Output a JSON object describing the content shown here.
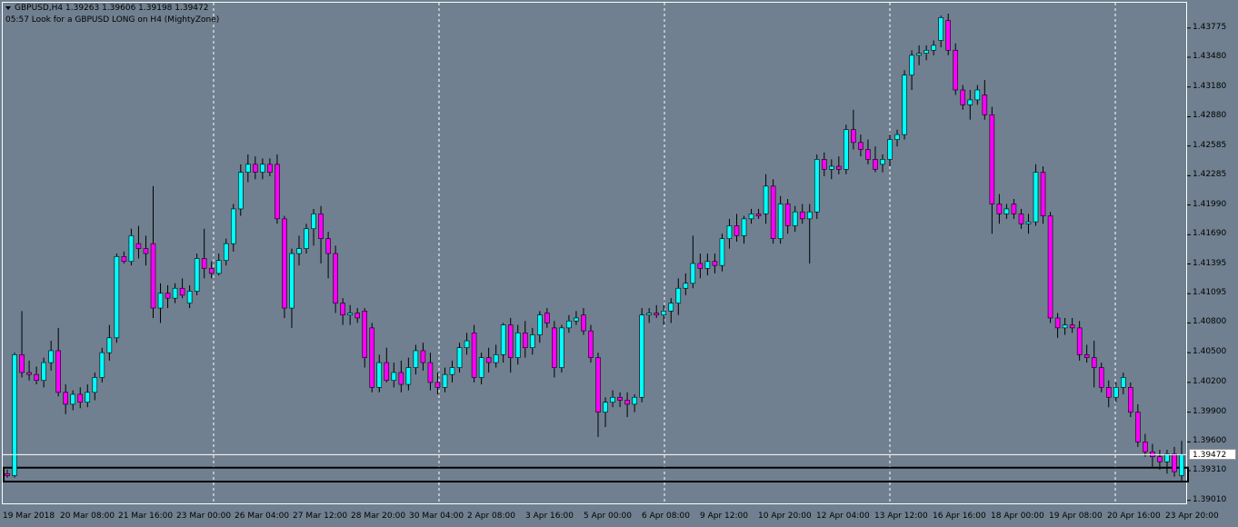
{
  "header": {
    "symbol_line": "GBPUSD,H4  1.39263 1.39606 1.39198 1.39472",
    "comment_line": "05:57 Look for a GBPUSD LONG on H4 (MightyZone)"
  },
  "colors": {
    "background": "#708090",
    "bull_candle": "#00ffff",
    "bear_candle": "#ff00ff",
    "wick": "#000000",
    "grid": "#ffffff",
    "zone_border": "#000000"
  },
  "current_price_label": "1.39472",
  "chart_data": {
    "type": "candlestick",
    "symbol": "GBPUSD",
    "timeframe": "H4",
    "grid": true,
    "ylim": [
      1.3898,
      1.4403
    ],
    "y_ticks": [
      "1.43775",
      "1.43480",
      "1.43180",
      "1.42880",
      "1.42585",
      "1.42285",
      "1.41990",
      "1.41690",
      "1.41395",
      "1.41095",
      "1.40800",
      "1.40500",
      "1.40200",
      "1.39900",
      "1.39600",
      "1.39310",
      "1.39010"
    ],
    "x_ticks": [
      "19 Mar 2018",
      "20 Mar 08:00",
      "21 Mar 16:00",
      "23 Mar 00:00",
      "26 Mar 04:00",
      "27 Mar 12:00",
      "28 Mar 20:00",
      "30 Mar 04:00",
      "2 Apr 08:00",
      "3 Apr 16:00",
      "5 Apr 00:00",
      "6 Apr 08:00",
      "9 Apr 12:00",
      "10 Apr 20:00",
      "12 Apr 04:00",
      "13 Apr 12:00",
      "16 Apr 16:00",
      "18 Apr 00:00",
      "19 Apr 08:00",
      "20 Apr 16:00",
      "23 Apr 20:00"
    ],
    "current_price": 1.39472,
    "zone": {
      "low": 1.392,
      "high": 1.3934,
      "label": "MightyZone"
    },
    "candles": [
      [
        1.3928,
        1.3932,
        1.3924,
        1.3926
      ],
      [
        1.3926,
        1.405,
        1.3924,
        1.4048
      ],
      [
        1.4048,
        1.4092,
        1.4025,
        1.403
      ],
      [
        1.403,
        1.4042,
        1.4022,
        1.4028
      ],
      [
        1.4028,
        1.4036,
        1.4018,
        1.4022
      ],
      [
        1.4022,
        1.4045,
        1.4015,
        1.404
      ],
      [
        1.404,
        1.4062,
        1.4032,
        1.4052
      ],
      [
        1.4052,
        1.4075,
        1.4006,
        1.401
      ],
      [
        1.401,
        1.4018,
        1.3988,
        1.3998
      ],
      [
        1.3998,
        1.4012,
        1.3992,
        1.4008
      ],
      [
        1.4008,
        1.4015,
        1.3994,
        1.4
      ],
      [
        1.4,
        1.4018,
        1.3995,
        1.401
      ],
      [
        1.401,
        1.403,
        1.4002,
        1.4025
      ],
      [
        1.4025,
        1.4055,
        1.402,
        1.405
      ],
      [
        1.405,
        1.4078,
        1.4042,
        1.4065
      ],
      [
        1.4065,
        1.415,
        1.406,
        1.4147
      ],
      [
        1.4147,
        1.4152,
        1.414,
        1.4142
      ],
      [
        1.4142,
        1.4175,
        1.4138,
        1.4168
      ],
      [
        1.416,
        1.4178,
        1.4145,
        1.4155
      ],
      [
        1.4155,
        1.4168,
        1.4138,
        1.415
      ],
      [
        1.416,
        1.4218,
        1.4085,
        1.4095
      ],
      [
        1.4095,
        1.412,
        1.408,
        1.411
      ],
      [
        1.411,
        1.4118,
        1.4095,
        1.4105
      ],
      [
        1.4105,
        1.412,
        1.41,
        1.4115
      ],
      [
        1.4115,
        1.4125,
        1.4105,
        1.4108
      ],
      [
        1.41,
        1.4118,
        1.4095,
        1.4112
      ],
      [
        1.4112,
        1.415,
        1.4108,
        1.4145
      ],
      [
        1.4145,
        1.4175,
        1.4125,
        1.4135
      ],
      [
        1.4135,
        1.4142,
        1.4125,
        1.413
      ],
      [
        1.413,
        1.415,
        1.4128,
        1.4143
      ],
      [
        1.4143,
        1.4165,
        1.4138,
        1.416
      ],
      [
        1.416,
        1.42,
        1.4152,
        1.4195
      ],
      [
        1.4195,
        1.424,
        1.4188,
        1.4232
      ],
      [
        1.4232,
        1.425,
        1.4222,
        1.424
      ],
      [
        1.424,
        1.4248,
        1.4225,
        1.4232
      ],
      [
        1.4232,
        1.4246,
        1.4225,
        1.424
      ],
      [
        1.424,
        1.4246,
        1.4228,
        1.4232
      ],
      [
        1.424,
        1.425,
        1.418,
        1.4185
      ],
      [
        1.4185,
        1.4188,
        1.4085,
        1.4095
      ],
      [
        1.4095,
        1.4155,
        1.4075,
        1.415
      ],
      [
        1.415,
        1.4168,
        1.4138,
        1.4155
      ],
      [
        1.4155,
        1.418,
        1.415,
        1.4175
      ],
      [
        1.4175,
        1.4195,
        1.4158,
        1.419
      ],
      [
        1.419,
        1.4198,
        1.414,
        1.4165
      ],
      [
        1.4165,
        1.4172,
        1.4125,
        1.415
      ],
      [
        1.415,
        1.4158,
        1.409,
        1.41
      ],
      [
        1.41,
        1.4105,
        1.4078,
        1.4088
      ],
      [
        1.4088,
        1.4098,
        1.4078,
        1.409
      ],
      [
        1.409,
        1.4095,
        1.408,
        1.4085
      ],
      [
        1.4092,
        1.4095,
        1.4035,
        1.4045
      ],
      [
        1.4075,
        1.408,
        1.401,
        1.4015
      ],
      [
        1.4015,
        1.4048,
        1.401,
        1.404
      ],
      [
        1.404,
        1.4055,
        1.402,
        1.4022
      ],
      [
        1.4022,
        1.404,
        1.4015,
        1.403
      ],
      [
        1.403,
        1.4042,
        1.401,
        1.4018
      ],
      [
        1.4018,
        1.4045,
        1.4012,
        1.4035
      ],
      [
        1.4035,
        1.4058,
        1.4028,
        1.4052
      ],
      [
        1.4052,
        1.406,
        1.4032,
        1.404
      ],
      [
        1.404,
        1.405,
        1.4012,
        1.402
      ],
      [
        1.402,
        1.403,
        1.4008,
        1.4015
      ],
      [
        1.4015,
        1.4035,
        1.401,
        1.4028
      ],
      [
        1.4028,
        1.4042,
        1.402,
        1.4035
      ],
      [
        1.4035,
        1.406,
        1.403,
        1.4055
      ],
      [
        1.4055,
        1.407,
        1.4048,
        1.4062
      ],
      [
        1.407,
        1.4078,
        1.402,
        1.4025
      ],
      [
        1.4025,
        1.405,
        1.4018,
        1.4045
      ],
      [
        1.4045,
        1.4055,
        1.403,
        1.404
      ],
      [
        1.404,
        1.4058,
        1.4035,
        1.4048
      ],
      [
        1.4048,
        1.408,
        1.404,
        1.4078
      ],
      [
        1.4078,
        1.4085,
        1.403,
        1.4045
      ],
      [
        1.4045,
        1.4078,
        1.4038,
        1.407
      ],
      [
        1.407,
        1.4082,
        1.4045,
        1.4055
      ],
      [
        1.4055,
        1.4075,
        1.4048,
        1.4068
      ],
      [
        1.4068,
        1.4092,
        1.406,
        1.4088
      ],
      [
        1.409,
        1.4095,
        1.4075,
        1.408
      ],
      [
        1.4075,
        1.4082,
        1.4025,
        1.4035
      ],
      [
        1.4035,
        1.4078,
        1.403,
        1.4075
      ],
      [
        1.4075,
        1.4088,
        1.407,
        1.4082
      ],
      [
        1.4082,
        1.4092,
        1.4078,
        1.4085
      ],
      [
        1.4088,
        1.4095,
        1.4068,
        1.4072
      ],
      [
        1.4072,
        1.4078,
        1.404,
        1.4045
      ],
      [
        1.4045,
        1.405,
        1.3965,
        1.399
      ],
      [
        1.399,
        1.4005,
        1.3975,
        1.4
      ],
      [
        1.4,
        1.4012,
        1.3995,
        1.4005
      ],
      [
        1.4005,
        1.401,
        1.3995,
        1.4002
      ],
      [
        1.4002,
        1.401,
        1.3985,
        1.3998
      ],
      [
        1.3998,
        1.4008,
        1.399,
        1.4005
      ],
      [
        1.4005,
        1.4095,
        1.4,
        1.4088
      ],
      [
        1.4088,
        1.4095,
        1.408,
        1.409
      ],
      [
        1.409,
        1.4098,
        1.4085,
        1.4088
      ],
      [
        1.4088,
        1.4098,
        1.4078,
        1.4092
      ],
      [
        1.4092,
        1.4105,
        1.408,
        1.41
      ],
      [
        1.41,
        1.4125,
        1.4088,
        1.4115
      ],
      [
        1.4115,
        1.413,
        1.4108,
        1.412
      ],
      [
        1.412,
        1.4168,
        1.4115,
        1.414
      ],
      [
        1.414,
        1.415,
        1.4125,
        1.4135
      ],
      [
        1.4135,
        1.415,
        1.4128,
        1.4142
      ],
      [
        1.4142,
        1.415,
        1.413,
        1.4138
      ],
      [
        1.4138,
        1.417,
        1.4132,
        1.4165
      ],
      [
        1.4165,
        1.4185,
        1.4155,
        1.4178
      ],
      [
        1.4178,
        1.419,
        1.4162,
        1.4168
      ],
      [
        1.4168,
        1.4188,
        1.416,
        1.4185
      ],
      [
        1.4185,
        1.4195,
        1.418,
        1.419
      ],
      [
        1.419,
        1.4195,
        1.4185,
        1.4188
      ],
      [
        1.419,
        1.423,
        1.418,
        1.4218
      ],
      [
        1.4218,
        1.4225,
        1.416,
        1.4165
      ],
      [
        1.4165,
        1.4208,
        1.416,
        1.42
      ],
      [
        1.42,
        1.4205,
        1.417,
        1.4178
      ],
      [
        1.4178,
        1.4198,
        1.4172,
        1.4192
      ],
      [
        1.4192,
        1.42,
        1.418,
        1.4185
      ],
      [
        1.4185,
        1.42,
        1.414,
        1.4192
      ],
      [
        1.4192,
        1.425,
        1.4185,
        1.4245
      ],
      [
        1.4245,
        1.4252,
        1.4228,
        1.4235
      ],
      [
        1.4235,
        1.4245,
        1.4225,
        1.4238
      ],
      [
        1.4238,
        1.4248,
        1.423,
        1.4235
      ],
      [
        1.4235,
        1.428,
        1.423,
        1.4275
      ],
      [
        1.4275,
        1.4295,
        1.4255,
        1.4262
      ],
      [
        1.4262,
        1.427,
        1.4248,
        1.4255
      ],
      [
        1.4255,
        1.4265,
        1.424,
        1.4245
      ],
      [
        1.4245,
        1.4258,
        1.4232,
        1.4235
      ],
      [
        1.424,
        1.425,
        1.4232,
        1.4245
      ],
      [
        1.4245,
        1.427,
        1.4238,
        1.4265
      ],
      [
        1.4265,
        1.4275,
        1.4258,
        1.427
      ],
      [
        1.427,
        1.4335,
        1.4265,
        1.433
      ],
      [
        1.433,
        1.4355,
        1.4315,
        1.435
      ],
      [
        1.435,
        1.436,
        1.434,
        1.4352
      ],
      [
        1.4352,
        1.436,
        1.4345,
        1.4355
      ],
      [
        1.4355,
        1.4365,
        1.435,
        1.436
      ],
      [
        1.4365,
        1.439,
        1.4358,
        1.4388
      ],
      [
        1.4385,
        1.4392,
        1.435,
        1.4355
      ],
      [
        1.4355,
        1.4362,
        1.431,
        1.4315
      ],
      [
        1.4315,
        1.432,
        1.4295,
        1.43
      ],
      [
        1.43,
        1.4315,
        1.4285,
        1.4305
      ],
      [
        1.4305,
        1.432,
        1.43,
        1.4315
      ],
      [
        1.431,
        1.4325,
        1.4285,
        1.429
      ],
      [
        1.429,
        1.4298,
        1.417,
        1.42
      ],
      [
        1.42,
        1.421,
        1.418,
        1.419
      ],
      [
        1.419,
        1.42,
        1.4185,
        1.4195
      ],
      [
        1.42,
        1.4205,
        1.4185,
        1.419
      ],
      [
        1.419,
        1.4195,
        1.4175,
        1.418
      ],
      [
        1.418,
        1.419,
        1.417,
        1.4182
      ],
      [
        1.4182,
        1.424,
        1.4178,
        1.4232
      ],
      [
        1.4232,
        1.4238,
        1.418,
        1.4188
      ],
      [
        1.4188,
        1.4192,
        1.408,
        1.4085
      ],
      [
        1.4085,
        1.409,
        1.4065,
        1.4075
      ],
      [
        1.4075,
        1.4085,
        1.4068,
        1.4078
      ],
      [
        1.4078,
        1.4085,
        1.407,
        1.4075
      ],
      [
        1.4075,
        1.4082,
        1.4042,
        1.4048
      ],
      [
        1.4048,
        1.4058,
        1.404,
        1.4045
      ],
      [
        1.4045,
        1.4062,
        1.4015,
        1.4035
      ],
      [
        1.4035,
        1.404,
        1.401,
        1.4015
      ],
      [
        1.4015,
        1.4022,
        1.3995,
        1.4005
      ],
      [
        1.4005,
        1.402,
        1.4,
        1.4015
      ],
      [
        1.4015,
        1.403,
        1.4008,
        1.4025
      ],
      [
        1.4015,
        1.402,
        1.3985,
        1.399
      ],
      [
        1.399,
        1.3998,
        1.3955,
        1.396
      ],
      [
        1.396,
        1.3968,
        1.3945,
        1.395
      ],
      [
        1.395,
        1.3958,
        1.3935,
        1.3945
      ],
      [
        1.3945,
        1.3952,
        1.3932,
        1.394
      ],
      [
        1.394,
        1.3952,
        1.3928,
        1.3948
      ],
      [
        1.3948,
        1.3955,
        1.3925,
        1.393
      ],
      [
        1.3926,
        1.3961,
        1.392,
        1.3947
      ]
    ]
  }
}
